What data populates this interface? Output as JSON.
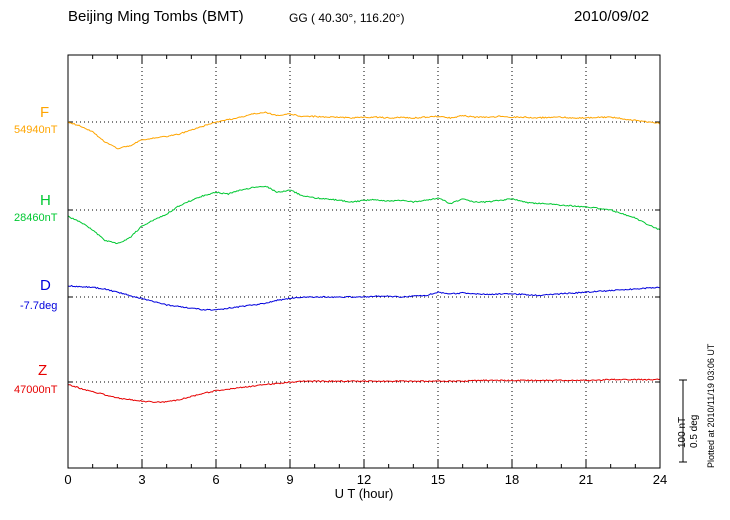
{
  "header": {
    "title": "Beijing Ming Tombs (BMT)",
    "coords": "GG ( 40.30°, 116.20°)",
    "date": "2010/09/02"
  },
  "scale_bar": {
    "nT_label": "100 nT",
    "deg_label": "0.5 deg"
  },
  "footer_note": "Plotted at 2010/11/19 03:06 UT",
  "chart_data": {
    "type": "line",
    "title": "Beijing Ming Tombs (BMT)",
    "xlabel": "U T (hour)",
    "xlim": [
      0,
      24
    ],
    "x_ticks": [
      0,
      3,
      6,
      9,
      12,
      15,
      18,
      21,
      24
    ],
    "grid": "dotted vertical lines at ticks, dotted horizontal baseline per trace",
    "x": [
      0,
      0.5,
      1,
      1.5,
      2,
      2.5,
      3,
      3.5,
      4,
      4.5,
      5,
      5.5,
      6,
      6.5,
      7,
      7.5,
      8,
      8.5,
      9,
      9.5,
      10,
      10.5,
      11,
      11.5,
      12,
      12.5,
      13,
      13.5,
      14,
      14.5,
      15,
      15.5,
      16,
      16.5,
      17,
      17.5,
      18,
      18.5,
      19,
      19.5,
      20,
      20.5,
      21,
      21.5,
      22,
      22.5,
      23,
      23.5,
      24
    ],
    "scale": {
      "nT_per_division": 100,
      "deg_per_division": 0.5
    },
    "series": [
      {
        "name": "F",
        "unit": "nT",
        "baseline_value": 54940,
        "baseline_label": "54940nT",
        "color": "#FFA500",
        "offsets": [
          0,
          -5,
          -12,
          -25,
          -33,
          -30,
          -22,
          -20,
          -18,
          -15,
          -10,
          -5,
          0,
          3,
          6,
          10,
          12,
          8,
          10,
          7,
          7,
          6,
          6,
          5,
          6,
          6,
          5,
          6,
          5,
          6,
          7,
          5,
          8,
          6,
          6,
          7,
          6,
          6,
          5,
          6,
          6,
          5,
          5,
          6,
          6,
          4,
          2,
          0,
          -2
        ]
      },
      {
        "name": "H",
        "unit": "nT",
        "baseline_value": 28460,
        "baseline_label": "28460nT",
        "color": "#00C832",
        "offsets": [
          -8,
          -15,
          -25,
          -38,
          -42,
          -35,
          -20,
          -12,
          -5,
          5,
          12,
          18,
          22,
          20,
          25,
          28,
          30,
          22,
          25,
          18,
          15,
          14,
          12,
          10,
          12,
          13,
          11,
          12,
          10,
          12,
          15,
          8,
          14,
          10,
          10,
          12,
          14,
          10,
          8,
          8,
          6,
          5,
          4,
          2,
          0,
          -5,
          -10,
          -18,
          -25
        ]
      },
      {
        "name": "D",
        "unit": "deg",
        "baseline_value": -7.7,
        "baseline_label": "-7.7deg",
        "color": "#0000DD",
        "offsets": [
          0.07,
          0.065,
          0.06,
          0.05,
          0.03,
          0.01,
          -0.01,
          -0.03,
          -0.05,
          -0.06,
          -0.07,
          -0.08,
          -0.08,
          -0.07,
          -0.06,
          -0.05,
          -0.04,
          -0.02,
          -0.01,
          0,
          0,
          0,
          0,
          0,
          0,
          0.005,
          0.005,
          0,
          0.005,
          0.01,
          0.03,
          0.02,
          0.025,
          0.02,
          0.015,
          0.02,
          0.02,
          0.015,
          0.01,
          0.015,
          0.02,
          0.025,
          0.03,
          0.035,
          0.04,
          0.045,
          0.05,
          0.055,
          0.06
        ]
      },
      {
        "name": "Z",
        "unit": "nT",
        "baseline_value": 47000,
        "baseline_label": "47000nT",
        "color": "#E60000",
        "offsets": [
          -3,
          -8,
          -12,
          -16,
          -20,
          -22,
          -24,
          -25,
          -25,
          -22,
          -18,
          -14,
          -11,
          -9,
          -7,
          -5,
          -3,
          -2,
          0,
          1,
          1,
          1,
          1,
          1,
          1,
          1,
          1,
          1,
          1,
          1,
          1,
          1,
          1,
          2,
          2,
          2,
          2,
          2,
          2,
          2,
          2,
          2,
          2,
          2,
          3,
          3,
          3,
          3,
          3
        ]
      }
    ]
  }
}
